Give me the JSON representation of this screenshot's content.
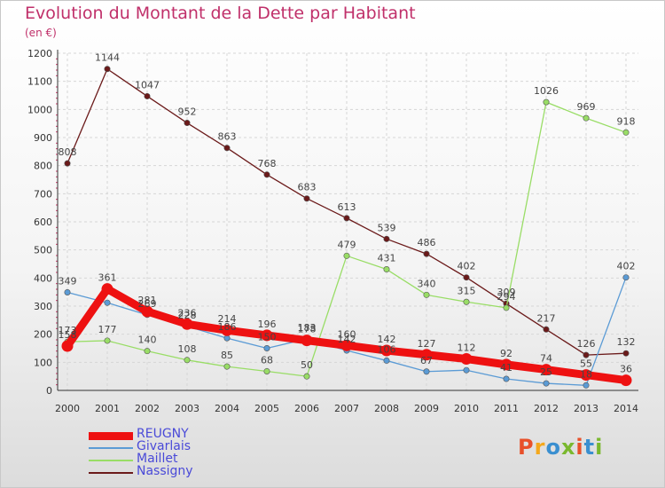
{
  "header": {
    "title": "Evolution du Montant de la Dette par Habitant",
    "unit": "(en €)"
  },
  "logo": {
    "text": "Proxiti",
    "colors": [
      "#e8502a",
      "#f4a81c",
      "#3a8fd0",
      "#7ab82e",
      "#e8502a",
      "#3a8fd0",
      "#7ab82e"
    ]
  },
  "chart_data": {
    "type": "line",
    "title": "Evolution du Montant de la Dette par Habitant",
    "ylabel": "(en €)",
    "xlabel": "",
    "ylim": [
      0,
      1200
    ],
    "yticks": [
      0,
      100,
      200,
      300,
      400,
      500,
      600,
      700,
      800,
      900,
      1000,
      1100,
      1200
    ],
    "x": [
      "2000",
      "2001",
      "2002",
      "2003",
      "2004",
      "2005",
      "2006",
      "2007",
      "2008",
      "2009",
      "2010",
      "2011",
      "2012",
      "2013",
      "2014"
    ],
    "grid": true,
    "legend_position": "bottom-left",
    "series": [
      {
        "name": "REUGNY",
        "color": "#ee1111",
        "text_color": "#4a4ad8",
        "values": [
          158,
          361,
          281,
          236,
          214,
          196,
          178,
          160,
          142,
          127,
          112,
          92,
          74,
          55,
          36
        ],
        "labels": [
          "158",
          "361",
          "281",
          "236",
          "214",
          "196",
          "178",
          "160",
          "142",
          "127",
          "112",
          "92",
          "74",
          "55",
          "36"
        ]
      },
      {
        "name": "Givarlais",
        "color": "#5b9bd5",
        "text_color": "#4a4ad8",
        "values": [
          349,
          312,
          269,
          228,
          186,
          150,
          183,
          142,
          106,
          67,
          72,
          41,
          25,
          18,
          402
        ],
        "labels": [
          "349",
          "",
          "269",
          "228",
          "186",
          "150",
          "183",
          "142",
          "106",
          "67",
          "",
          "41",
          "25",
          "18",
          "402"
        ]
      },
      {
        "name": "Maillet",
        "color": "#99dd66",
        "text_color": "#4a4ad8",
        "values": [
          173,
          177,
          140,
          108,
          85,
          68,
          50,
          479,
          431,
          340,
          315,
          294,
          1026,
          969,
          918
        ],
        "labels": [
          "173",
          "177",
          "140",
          "108",
          "85",
          "68",
          "50",
          "479",
          "431",
          "340",
          "315",
          "294",
          "1026",
          "969",
          "918"
        ]
      },
      {
        "name": "Nassigny",
        "color": "#6b1a1a",
        "text_color": "#4a4ad8",
        "values": [
          808,
          1144,
          1047,
          952,
          863,
          768,
          683,
          613,
          539,
          486,
          402,
          309,
          217,
          126,
          132
        ],
        "labels": [
          "808",
          "1144",
          "1047",
          "952",
          "863",
          "768",
          "683",
          "613",
          "539",
          "486",
          "402",
          "309",
          "217",
          "126",
          "132"
        ]
      }
    ]
  }
}
